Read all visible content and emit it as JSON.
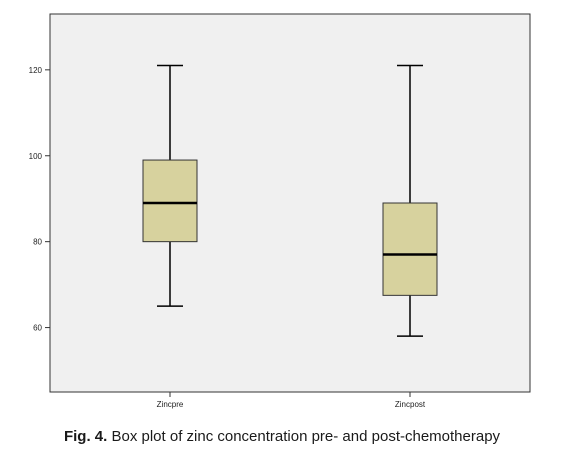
{
  "caption": {
    "label": "Fig. 4.",
    "text": " Box plot of zinc concentration pre- and post-chemotherapy"
  },
  "colors": {
    "plot_background": "#f0f0f0",
    "box_fill": "#d7d29e",
    "box_stroke": "#333333",
    "median": "#000000",
    "axis": "#333333"
  },
  "chart_data": {
    "type": "boxplot",
    "title": "",
    "xlabel": "",
    "ylabel": "",
    "ylim": [
      45,
      133
    ],
    "yticks": [
      60,
      80,
      100,
      120
    ],
    "grid": false,
    "categories": [
      "Zincpre",
      "Zincpost"
    ],
    "boxes": [
      {
        "category": "Zincpre",
        "min": 65,
        "q1": 80,
        "median": 89,
        "q3": 99,
        "max": 121
      },
      {
        "category": "Zincpost",
        "min": 58,
        "q1": 67.5,
        "median": 77,
        "q3": 89,
        "max": 121
      }
    ]
  }
}
